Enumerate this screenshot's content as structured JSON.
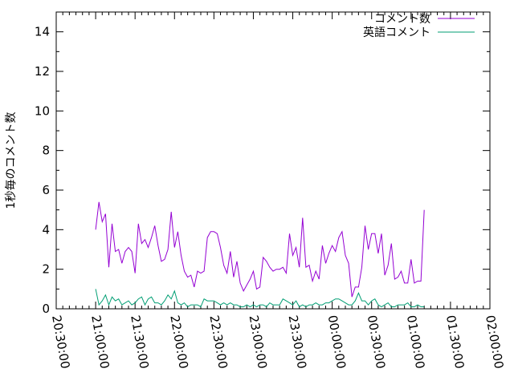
{
  "chart_data": {
    "type": "line",
    "title": "",
    "xlabel": "",
    "ylabel": "1秒毎のコメント数",
    "xlim": [
      "20:30:00",
      "02:00:00"
    ],
    "ylim": [
      0,
      15
    ],
    "grid": false,
    "legend_position": "top-right",
    "x_ticks": [
      "20:30:00",
      "21:00:00",
      "21:30:00",
      "22:00:00",
      "22:30:00",
      "23:00:00",
      "23:30:00",
      "00:00:00",
      "00:30:00",
      "01:00:00",
      "01:30:00",
      "02:00:00"
    ],
    "y_ticks": [
      0,
      2,
      4,
      6,
      8,
      10,
      12,
      14
    ],
    "x_start": "21:00:00",
    "x_step_minutes": 2.5,
    "series": [
      {
        "name": "コメント数",
        "color": "#9400d3",
        "values": [
          4.0,
          5.4,
          4.4,
          4.8,
          2.1,
          4.3,
          2.9,
          3.0,
          2.3,
          2.9,
          3.1,
          2.9,
          1.8,
          4.3,
          3.3,
          3.5,
          3.1,
          3.6,
          4.2,
          3.2,
          2.4,
          2.5,
          3.0,
          4.9,
          3.1,
          3.9,
          2.7,
          1.9,
          1.6,
          1.7,
          1.1,
          1.9,
          1.8,
          1.9,
          3.6,
          3.9,
          3.9,
          3.8,
          3.1,
          2.2,
          1.8,
          2.9,
          1.6,
          2.4,
          1.3,
          0.9,
          1.2,
          1.5,
          1.9,
          1.0,
          1.1,
          2.6,
          2.4,
          2.1,
          1.9,
          2.0,
          2.0,
          2.1,
          1.8,
          3.8,
          2.7,
          3.1,
          2.1,
          4.6,
          2.1,
          2.2,
          1.4,
          1.9,
          1.5,
          3.2,
          2.3,
          2.8,
          3.2,
          2.9,
          3.6,
          3.9,
          2.7,
          2.3,
          0.6,
          1.1,
          1.1,
          2.1,
          4.2,
          3.0,
          3.8,
          3.8,
          2.8,
          3.8,
          1.7,
          2.2,
          3.3,
          1.5,
          1.6,
          1.9,
          1.3,
          1.3,
          2.5,
          1.3,
          1.4,
          1.4,
          5.0
        ]
      },
      {
        "name": "英語コメント",
        "color": "#009e73",
        "values": [
          1.0,
          0.2,
          0.4,
          0.7,
          0.2,
          0.6,
          0.4,
          0.5,
          0.2,
          0.3,
          0.4,
          0.2,
          0.3,
          0.5,
          0.6,
          0.2,
          0.5,
          0.6,
          0.3,
          0.3,
          0.2,
          0.4,
          0.7,
          0.5,
          0.9,
          0.3,
          0.2,
          0.3,
          0.1,
          0.2,
          0.2,
          0.2,
          0.1,
          0.5,
          0.4,
          0.4,
          0.4,
          0.3,
          0.2,
          0.3,
          0.2,
          0.3,
          0.2,
          0.2,
          0.1,
          0.1,
          0.2,
          0.1,
          0.2,
          0.1,
          0.2,
          0.2,
          0.1,
          0.3,
          0.2,
          0.2,
          0.2,
          0.5,
          0.4,
          0.3,
          0.2,
          0.4,
          0.1,
          0.2,
          0.1,
          0.2,
          0.2,
          0.3,
          0.2,
          0.2,
          0.3,
          0.3,
          0.4,
          0.5,
          0.5,
          0.4,
          0.3,
          0.2,
          0.2,
          0.4,
          0.8,
          0.4,
          0.4,
          0.2,
          0.4,
          0.5,
          0.2,
          0.1,
          0.2,
          0.3,
          0.1,
          0.1,
          0.2,
          0.2,
          0.2,
          0.3,
          0.1,
          0.1,
          0.2,
          0.1,
          0.1
        ]
      }
    ]
  }
}
